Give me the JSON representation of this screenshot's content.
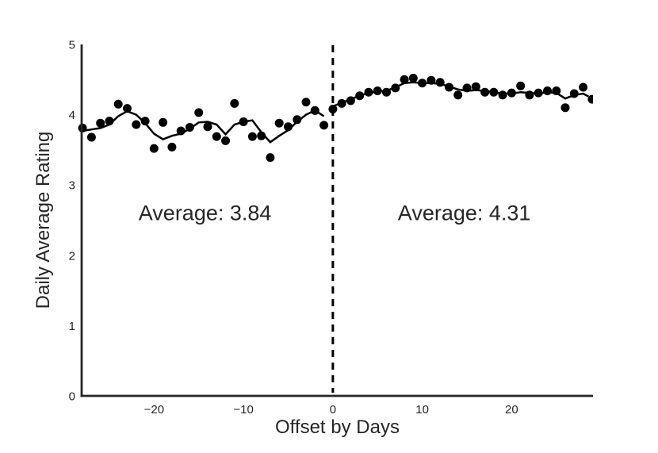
{
  "figure": {
    "background": "#ffffff"
  },
  "chart_data": {
    "type": "scatter",
    "title": "",
    "xlabel": "Offset by Days",
    "ylabel": "Daily Average Rating",
    "xlim": [
      -28.1,
      29.1
    ],
    "ylim": [
      0,
      5
    ],
    "grid": false,
    "legend": "none",
    "x_ticks": [
      -20,
      -10,
      0,
      10,
      20
    ],
    "x_tick_labels": [
      "−20",
      "−10",
      "0",
      "10",
      "20"
    ],
    "y_ticks": [
      0,
      1,
      2,
      3,
      4,
      5
    ],
    "y_tick_labels": [
      "0",
      "1",
      "2",
      "3",
      "4",
      "5"
    ],
    "event_line": {
      "x": 0,
      "style": "dashed"
    },
    "annotations": [
      {
        "id": "pre",
        "text": "Average: 3.84",
        "x": -14.3,
        "y": 2.6
      },
      {
        "id": "post",
        "text": "Average: 4.31",
        "x": 14.7,
        "y": 2.6
      }
    ],
    "series": [
      {
        "name": "pre-period daily ratings",
        "kind": "scatter",
        "x": [
          -28,
          -27,
          -26,
          -25,
          -24,
          -23,
          -22,
          -21,
          -20,
          -19,
          -18,
          -17,
          -16,
          -15,
          -14,
          -13,
          -12,
          -11,
          -10,
          -9,
          -8,
          -7,
          -6,
          -5,
          -4,
          -3,
          -2,
          -1
        ],
        "y": [
          3.81,
          3.68,
          3.88,
          3.91,
          4.15,
          4.09,
          3.86,
          3.91,
          3.52,
          3.89,
          3.54,
          3.77,
          3.82,
          4.03,
          3.83,
          3.69,
          3.63,
          4.16,
          3.9,
          3.69,
          3.7,
          3.39,
          3.88,
          3.83,
          3.93,
          4.18,
          4.06,
          3.85
        ]
      },
      {
        "name": "post-period daily ratings",
        "kind": "scatter",
        "x": [
          0,
          1,
          2,
          3,
          4,
          5,
          6,
          7,
          8,
          9,
          10,
          11,
          12,
          13,
          14,
          15,
          16,
          17,
          18,
          19,
          20,
          21,
          22,
          23,
          24,
          25,
          26,
          27,
          28,
          29
        ],
        "y": [
          4.08,
          4.16,
          4.2,
          4.27,
          4.32,
          4.34,
          4.32,
          4.38,
          4.5,
          4.52,
          4.45,
          4.49,
          4.46,
          4.39,
          4.28,
          4.38,
          4.4,
          4.32,
          4.32,
          4.28,
          4.31,
          4.41,
          4.28,
          4.31,
          4.34,
          4.34,
          4.1,
          4.3,
          4.39,
          4.22
        ]
      },
      {
        "name": "pre-period trend",
        "kind": "line",
        "x": [
          -28,
          -27,
          -26,
          -25,
          -24,
          -23,
          -22,
          -21,
          -20,
          -19,
          -18,
          -17,
          -16,
          -15,
          -14,
          -13,
          -12,
          -11,
          -10,
          -9,
          -8,
          -7,
          -6,
          -5,
          -4,
          -3,
          -2,
          -1
        ],
        "y": [
          3.77,
          3.79,
          3.81,
          3.86,
          3.98,
          4.05,
          4.0,
          3.88,
          3.73,
          3.65,
          3.7,
          3.73,
          3.8,
          3.89,
          3.9,
          3.86,
          3.72,
          3.86,
          3.9,
          3.92,
          3.75,
          3.61,
          3.7,
          3.78,
          3.9,
          4.0,
          4.06,
          3.98
        ]
      },
      {
        "name": "post-period trend",
        "kind": "line",
        "x": [
          0,
          1,
          2,
          3,
          4,
          5,
          6,
          7,
          8,
          9,
          10,
          11,
          12,
          13,
          14,
          15,
          16,
          17,
          18,
          19,
          20,
          21,
          22,
          23,
          24,
          25,
          26,
          27,
          28,
          28.6
        ],
        "y": [
          4.12,
          4.17,
          4.22,
          4.27,
          4.31,
          4.33,
          4.34,
          4.39,
          4.45,
          4.46,
          4.45,
          4.45,
          4.44,
          4.4,
          4.36,
          4.34,
          4.35,
          4.34,
          4.32,
          4.3,
          4.3,
          4.32,
          4.31,
          4.3,
          4.32,
          4.31,
          4.23,
          4.28,
          4.3,
          4.26
        ]
      }
    ],
    "colors": {
      "points": "#000000",
      "trend_line": "#000000",
      "event_line": "#000000",
      "text": "#262626",
      "spine": "#262626"
    }
  }
}
